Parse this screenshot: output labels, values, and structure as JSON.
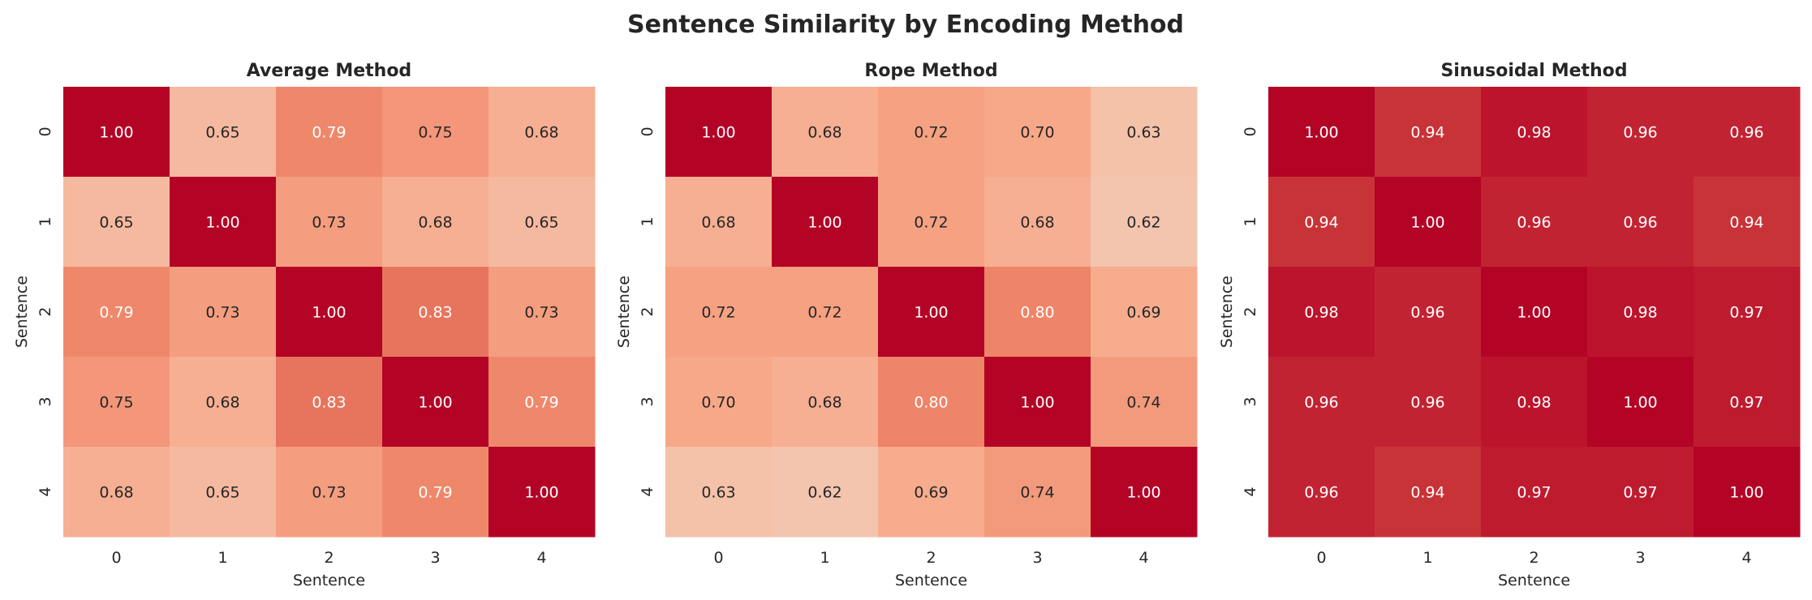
{
  "chart_data": {
    "title": "Sentence Similarity by Encoding Method",
    "colormap": "coolwarm",
    "vrange": [
      0,
      1
    ],
    "charts": [
      {
        "type": "heatmap",
        "title": "Average Method",
        "xlabel": "Sentence",
        "ylabel": "Sentence",
        "xticks": [
          "0",
          "1",
          "2",
          "3",
          "4"
        ],
        "yticks": [
          "0",
          "1",
          "2",
          "3",
          "4"
        ],
        "values": [
          [
            1.0,
            0.65,
            0.79,
            0.75,
            0.68
          ],
          [
            0.65,
            1.0,
            0.73,
            0.68,
            0.65
          ],
          [
            0.79,
            0.73,
            1.0,
            0.83,
            0.73
          ],
          [
            0.75,
            0.68,
            0.83,
            1.0,
            0.79
          ],
          [
            0.68,
            0.65,
            0.73,
            0.79,
            1.0
          ]
        ]
      },
      {
        "type": "heatmap",
        "title": "Rope Method",
        "xlabel": "Sentence",
        "ylabel": "Sentence",
        "xticks": [
          "0",
          "1",
          "2",
          "3",
          "4"
        ],
        "yticks": [
          "0",
          "1",
          "2",
          "3",
          "4"
        ],
        "values": [
          [
            1.0,
            0.68,
            0.72,
            0.7,
            0.63
          ],
          [
            0.68,
            1.0,
            0.72,
            0.68,
            0.62
          ],
          [
            0.72,
            0.72,
            1.0,
            0.8,
            0.69
          ],
          [
            0.7,
            0.68,
            0.8,
            1.0,
            0.74
          ],
          [
            0.63,
            0.62,
            0.69,
            0.74,
            1.0
          ]
        ]
      },
      {
        "type": "heatmap",
        "title": "Sinusoidal Method",
        "xlabel": "Sentence",
        "ylabel": "Sentence",
        "xticks": [
          "0",
          "1",
          "2",
          "3",
          "4"
        ],
        "yticks": [
          "0",
          "1",
          "2",
          "3",
          "4"
        ],
        "values": [
          [
            1.0,
            0.94,
            0.98,
            0.96,
            0.96
          ],
          [
            0.94,
            1.0,
            0.96,
            0.96,
            0.94
          ],
          [
            0.98,
            0.96,
            1.0,
            0.98,
            0.97
          ],
          [
            0.96,
            0.96,
            0.98,
            1.0,
            0.97
          ],
          [
            0.96,
            0.94,
            0.97,
            0.97,
            1.0
          ]
        ]
      }
    ]
  }
}
